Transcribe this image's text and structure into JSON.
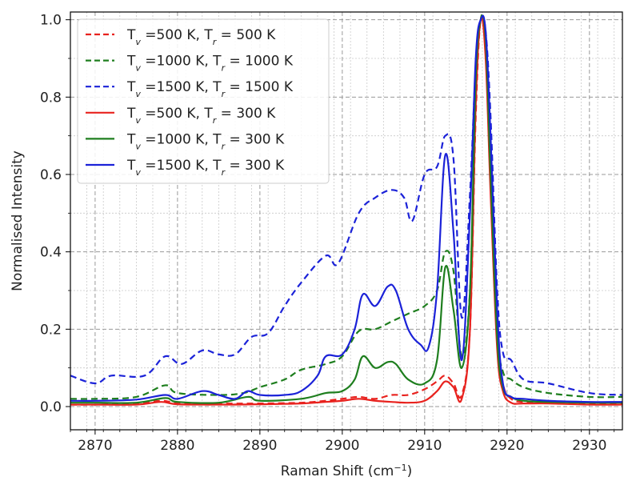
{
  "chart_data": {
    "type": "line",
    "xlabel": "Raman Shift (cm",
    "xlabel_sup": "−1",
    "xlabel_end": ")",
    "ylabel": "Normalised Intensity",
    "xlim": [
      2867,
      2934
    ],
    "ylim": [
      -0.06,
      1.02
    ],
    "xticks": [
      2870,
      2880,
      2890,
      2900,
      2910,
      2920,
      2930
    ],
    "yticks": [
      0.0,
      0.2,
      0.4,
      0.6,
      0.8,
      1.0
    ],
    "xtick_labels": [
      "2870",
      "2880",
      "2890",
      "2900",
      "2910",
      "2920",
      "2930"
    ],
    "ytick_labels": [
      "0.0",
      "0.2",
      "0.4",
      "0.6",
      "0.8",
      "1.0"
    ],
    "grid": true,
    "legend_position": "top-left",
    "series": [
      {
        "legend": {
          "a": "T",
          "a_sub": "v",
          "b": " =500 K, T",
          "b_sub": "r",
          "c": " = 500 K"
        },
        "color": "#e8221e",
        "dash": true,
        "x": [
          2867,
          2870,
          2875,
          2878,
          2880,
          2885,
          2890,
          2895,
          2898,
          2900,
          2902,
          2904,
          2906,
          2908,
          2910,
          2911.5,
          2912.5,
          2913.5,
          2914.5,
          2915.5,
          2916.2,
          2916.8,
          2917.4,
          2918,
          2918.8,
          2919.5,
          2920.5,
          2922,
          2925,
          2930,
          2934
        ],
        "y": [
          0.005,
          0.005,
          0.008,
          0.015,
          0.01,
          0.008,
          0.008,
          0.01,
          0.015,
          0.02,
          0.025,
          0.02,
          0.03,
          0.03,
          0.045,
          0.065,
          0.08,
          0.06,
          0.03,
          0.2,
          0.75,
          1.0,
          0.92,
          0.6,
          0.2,
          0.06,
          0.02,
          0.012,
          0.01,
          0.008,
          0.008
        ]
      },
      {
        "legend": {
          "a": "T",
          "a_sub": "v",
          "b": " =1000 K, T",
          "b_sub": "r",
          "c": " = 1000 K"
        },
        "color": "#1e7e1e",
        "dash": true,
        "x": [
          2867,
          2870,
          2875,
          2878.5,
          2880,
          2885,
          2888,
          2890,
          2893,
          2895,
          2898,
          2900,
          2902,
          2904,
          2906,
          2908,
          2910,
          2911.5,
          2912.5,
          2913.5,
          2914.5,
          2915.5,
          2916.2,
          2916.8,
          2917.4,
          2918,
          2918.8,
          2919.5,
          2920.5,
          2922,
          2925,
          2930,
          2934
        ],
        "y": [
          0.02,
          0.02,
          0.025,
          0.055,
          0.035,
          0.03,
          0.035,
          0.05,
          0.07,
          0.095,
          0.11,
          0.13,
          0.195,
          0.2,
          0.22,
          0.24,
          0.26,
          0.3,
          0.4,
          0.35,
          0.13,
          0.3,
          0.8,
          1.0,
          0.95,
          0.6,
          0.2,
          0.09,
          0.07,
          0.05,
          0.035,
          0.025,
          0.025
        ]
      },
      {
        "legend": {
          "a": "T",
          "a_sub": "v",
          "b": " =1500 K, T",
          "b_sub": "r",
          "c": " = 1500 K"
        },
        "color": "#1b22d8",
        "dash": true,
        "x": [
          2867,
          2870,
          2872,
          2876,
          2878.5,
          2880.5,
          2883,
          2885,
          2887,
          2889,
          2891,
          2893,
          2895,
          2898,
          2899.5,
          2902,
          2904,
          2906,
          2907.5,
          2908.5,
          2910,
          2911.5,
          2912.5,
          2913.5,
          2914.5,
          2915.5,
          2916.2,
          2916.8,
          2917.4,
          2918,
          2918.8,
          2919.5,
          2920.5,
          2922,
          2925,
          2930,
          2934
        ],
        "y": [
          0.08,
          0.06,
          0.08,
          0.08,
          0.13,
          0.11,
          0.145,
          0.135,
          0.135,
          0.18,
          0.19,
          0.26,
          0.32,
          0.39,
          0.37,
          0.5,
          0.54,
          0.56,
          0.54,
          0.48,
          0.6,
          0.62,
          0.7,
          0.64,
          0.23,
          0.55,
          0.88,
          1.0,
          0.97,
          0.75,
          0.3,
          0.14,
          0.12,
          0.07,
          0.06,
          0.035,
          0.03
        ]
      },
      {
        "legend": {
          "a": "T",
          "a_sub": "v",
          "b": " =500 K, T",
          "b_sub": "r",
          "c": " = 300 K"
        },
        "color": "#e8221e",
        "dash": false,
        "x": [
          2867,
          2870,
          2875,
          2878,
          2880,
          2885,
          2890,
          2895,
          2898,
          2900,
          2902,
          2904,
          2906,
          2908,
          2910,
          2911.5,
          2912.5,
          2913.5,
          2914.5,
          2915.5,
          2916.2,
          2916.8,
          2917.4,
          2918,
          2918.8,
          2919.5,
          2920.5,
          2922,
          2925,
          2930,
          2934
        ],
        "y": [
          0.005,
          0.005,
          0.005,
          0.012,
          0.006,
          0.005,
          0.006,
          0.008,
          0.012,
          0.015,
          0.02,
          0.015,
          0.012,
          0.01,
          0.015,
          0.04,
          0.065,
          0.05,
          0.02,
          0.2,
          0.78,
          1.0,
          0.9,
          0.55,
          0.15,
          0.04,
          0.01,
          0.008,
          0.008,
          0.005,
          0.005
        ]
      },
      {
        "legend": {
          "a": "T",
          "a_sub": "v",
          "b": " =1000 K, T",
          "b_sub": "r",
          "c": " = 300 K"
        },
        "color": "#1e7e1e",
        "dash": false,
        "x": [
          2867,
          2870,
          2875,
          2878.5,
          2880,
          2885,
          2888.5,
          2890,
          2895,
          2898,
          2900,
          2901.5,
          2902.5,
          2904,
          2905.5,
          2906.5,
          2908,
          2910,
          2911.5,
          2912.5,
          2913.5,
          2914.5,
          2915.5,
          2916.2,
          2916.8,
          2917.4,
          2918,
          2918.8,
          2919.5,
          2920.5,
          2922,
          2925,
          2930,
          2934
        ],
        "y": [
          0.01,
          0.01,
          0.01,
          0.022,
          0.012,
          0.01,
          0.025,
          0.015,
          0.02,
          0.035,
          0.04,
          0.07,
          0.13,
          0.1,
          0.115,
          0.11,
          0.07,
          0.06,
          0.12,
          0.36,
          0.25,
          0.1,
          0.3,
          0.85,
          1.0,
          0.95,
          0.6,
          0.18,
          0.05,
          0.025,
          0.015,
          0.012,
          0.01,
          0.01
        ]
      },
      {
        "legend": {
          "a": "T",
          "a_sub": "v",
          "b": " =1500 K, T",
          "b_sub": "r",
          "c": " = 300 K"
        },
        "color": "#1b22d8",
        "dash": false,
        "x": [
          2867,
          2870,
          2875,
          2878.5,
          2880,
          2883,
          2885,
          2887,
          2888.5,
          2890,
          2893,
          2895,
          2897,
          2898,
          2900,
          2901.5,
          2902.5,
          2904,
          2905.5,
          2906.5,
          2908,
          2909.5,
          2910.5,
          2911.5,
          2912.5,
          2913.5,
          2914.5,
          2915.5,
          2916.2,
          2916.8,
          2917.4,
          2918,
          2918.8,
          2919.5,
          2920.5,
          2922,
          2925,
          2930,
          2934
        ],
        "y": [
          0.015,
          0.015,
          0.018,
          0.03,
          0.02,
          0.04,
          0.03,
          0.02,
          0.04,
          0.03,
          0.03,
          0.04,
          0.08,
          0.13,
          0.135,
          0.2,
          0.29,
          0.26,
          0.31,
          0.3,
          0.2,
          0.16,
          0.155,
          0.3,
          0.65,
          0.45,
          0.12,
          0.5,
          0.9,
          1.0,
          0.97,
          0.7,
          0.25,
          0.06,
          0.025,
          0.02,
          0.015,
          0.012,
          0.012
        ]
      }
    ]
  }
}
